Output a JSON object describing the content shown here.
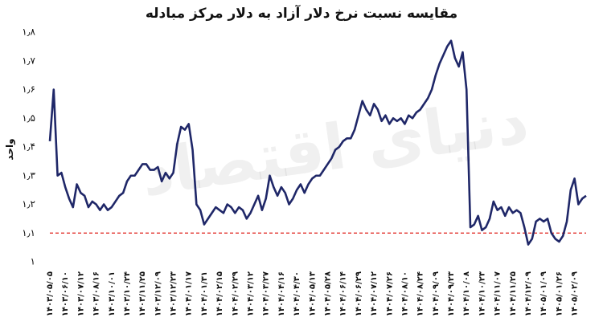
{
  "chart_data": {
    "type": "line",
    "title": "مقایسه نسبت نرخ دلار آزاد به دلار مرکز مبادله",
    "y_label": "واحد",
    "watermark": "دنیای اقتصاد",
    "color": "#1f2768",
    "ylim": [
      1,
      1.8
    ],
    "yticks": [
      {
        "value": 1,
        "label": "۱"
      },
      {
        "value": 1.1,
        "label": "۱٫۱"
      },
      {
        "value": 1.2,
        "label": "۱٫۲"
      },
      {
        "value": 1.3,
        "label": "۱٫۳"
      },
      {
        "value": 1.4,
        "label": "۱٫۴"
      },
      {
        "value": 1.5,
        "label": "۱٫۵"
      },
      {
        "value": 1.6,
        "label": "۱٫۶"
      },
      {
        "value": 1.7,
        "label": "۱٫۷"
      },
      {
        "value": 1.8,
        "label": "۱٫۸"
      }
    ],
    "reference_line": {
      "value": 1.1,
      "color": "#e0201b"
    },
    "categories": [
      "۱۴۰۳/۰۵/۰۵",
      null,
      null,
      null,
      "۱۴۰۳/۰۶/۱۰",
      null,
      null,
      null,
      "۱۴۰۳/۰۷/۱۲",
      null,
      null,
      null,
      "۱۴۰۳/۰۸/۱۶",
      null,
      null,
      null,
      "۱۴۰۳/۱۰/۰۱",
      null,
      null,
      null,
      "۱۴۰۳/۱۰/۲۴",
      null,
      null,
      null,
      "۱۴۰۳/۱۱/۲۵",
      null,
      null,
      null,
      "۱۴۰۳/۱۲/۰۹",
      null,
      null,
      null,
      "۱۴۰۳/۱۲/۲۳",
      null,
      null,
      null,
      "۱۴۰۴/۰۱/۱۷",
      null,
      null,
      null,
      "۱۴۰۴/۰۱/۳۱",
      null,
      null,
      null,
      "۱۴۰۴/۰۲/۱۵",
      null,
      null,
      null,
      "۱۴۰۴/۰۲/۲۹",
      null,
      null,
      null,
      "۱۴۰۴/۰۳/۱۲",
      null,
      null,
      null,
      "۱۴۰۴/۰۳/۲۷",
      null,
      null,
      null,
      "۱۴۰۴/۰۴/۱۶",
      null,
      null,
      null,
      "۱۴۰۴/۰۴/۳۰",
      null,
      null,
      null,
      "۱۴۰۴/۰۵/۱۳",
      null,
      null,
      null,
      "۱۴۰۴/۰۵/۲۸",
      null,
      null,
      null,
      "۱۴۰۴/۰۶/۱۴",
      null,
      null,
      null,
      "۱۴۰۴/۰۶/۲۹",
      null,
      null,
      null,
      "۱۴۰۴/۰۷/۱۲",
      null,
      null,
      null,
      "۱۴۰۴/۰۷/۲۶",
      null,
      null,
      null,
      "۱۴۰۴/۰۸/۱۰",
      null,
      null,
      null,
      "۱۴۰۴/۰۸/۲۴",
      null,
      null,
      null,
      "۱۴۰۴/۰۹/۰۹",
      null,
      null,
      null,
      "۱۴۰۴/۰۹/۲۳",
      null,
      null,
      null,
      "۱۴۰۴/۱۰/۰۸",
      null,
      null,
      null,
      "۱۴۰۴/۱۰/۲۳",
      null,
      null,
      null,
      "۱۴۰۴/۱۱/۰۷",
      null,
      null,
      null,
      "۱۴۰۴/۱۱/۲۵",
      null,
      null,
      null,
      "۱۴۰۴/۱۲/۰۹",
      null,
      null,
      null,
      "۱۴۰۵/۰۱/۰۹",
      null,
      null,
      null,
      "۱۴۰۵/۰۱/۲۶",
      null,
      null,
      null,
      "۱۴۰۵/۰۲/۰۹",
      null,
      null,
      null
    ],
    "values": [
      1.42,
      1.6,
      1.3,
      1.31,
      1.26,
      1.22,
      1.19,
      1.27,
      1.24,
      1.23,
      1.19,
      1.21,
      1.2,
      1.18,
      1.2,
      1.18,
      1.19,
      1.21,
      1.23,
      1.24,
      1.28,
      1.3,
      1.3,
      1.32,
      1.34,
      1.34,
      1.32,
      1.32,
      1.33,
      1.28,
      1.31,
      1.29,
      1.31,
      1.41,
      1.47,
      1.46,
      1.48,
      1.39,
      1.2,
      1.18,
      1.13,
      1.15,
      1.17,
      1.19,
      1.18,
      1.17,
      1.2,
      1.19,
      1.17,
      1.19,
      1.18,
      1.15,
      1.17,
      1.2,
      1.23,
      1.18,
      1.22,
      1.3,
      1.26,
      1.23,
      1.26,
      1.24,
      1.2,
      1.22,
      1.25,
      1.27,
      1.24,
      1.27,
      1.29,
      1.3,
      1.3,
      1.32,
      1.34,
      1.36,
      1.39,
      1.4,
      1.42,
      1.43,
      1.43,
      1.46,
      1.51,
      1.56,
      1.53,
      1.51,
      1.55,
      1.53,
      1.49,
      1.51,
      1.48,
      1.5,
      1.49,
      1.5,
      1.48,
      1.51,
      1.5,
      1.52,
      1.53,
      1.55,
      1.57,
      1.6,
      1.65,
      1.69,
      1.72,
      1.75,
      1.77,
      1.71,
      1.68,
      1.73,
      1.6,
      1.12,
      1.13,
      1.16,
      1.11,
      1.12,
      1.15,
      1.21,
      1.18,
      1.19,
      1.16,
      1.19,
      1.17,
      1.18,
      1.17,
      1.12,
      1.06,
      1.08,
      1.14,
      1.15,
      1.14,
      1.15,
      1.1,
      1.08,
      1.07,
      1.09,
      1.14,
      1.25,
      1.29,
      1.2,
      1.22,
      1.23
    ]
  }
}
